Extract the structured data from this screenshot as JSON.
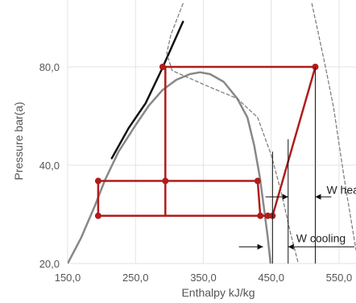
{
  "chart_data": {
    "type": "line",
    "title": "",
    "xlabel": "Enthalpy kJ/kg",
    "ylabel": "Pressure bar(a)",
    "x_scale": "linear",
    "y_scale": "log",
    "xlim": [
      150,
      575
    ],
    "ylim": [
      20,
      120
    ],
    "x_ticks": [
      150,
      250,
      350,
      450,
      550
    ],
    "x_tick_labels": [
      "150,0",
      "250,0",
      "350,0",
      "450,0",
      "550,0"
    ],
    "y_ticks": [
      20,
      40,
      80
    ],
    "y_tick_labels": [
      "20,0",
      "40,0",
      "80,0"
    ],
    "grid": {
      "x": true,
      "y": true
    },
    "legend": "none",
    "colors": {
      "cycle": "#b01c1c",
      "dome": "#888888",
      "isotherm_black": "#111111",
      "isentropic": "#777777",
      "grid": "#e3e3e3",
      "annotation": "#111111"
    },
    "series": [
      {
        "role": "saturation-dome",
        "points": [
          [
            150,
            20
          ],
          [
            170,
            24
          ],
          [
            190,
            30
          ],
          [
            205,
            36
          ],
          [
            225,
            44
          ],
          [
            250,
            53
          ],
          [
            270,
            61
          ],
          [
            290,
            68
          ],
          [
            310,
            73
          ],
          [
            330,
            76
          ],
          [
            345,
            77
          ],
          [
            360,
            76
          ],
          [
            380,
            72
          ],
          [
            400,
            64
          ],
          [
            415,
            56
          ],
          [
            425,
            46
          ],
          [
            433,
            37
          ],
          [
            439,
            30
          ],
          [
            445,
            24
          ],
          [
            449,
            20
          ]
        ]
      },
      {
        "role": "isotherm",
        "points": [
          [
            215,
            42
          ],
          [
            240,
            52
          ],
          [
            265,
            62
          ],
          [
            288,
            78
          ],
          [
            320,
            110
          ]
        ]
      },
      {
        "role": "isentropic-1",
        "points": [
          [
            320,
            125
          ],
          [
            302,
            100
          ],
          [
            296,
            88
          ],
          [
            304,
            78
          ],
          [
            355,
            70
          ],
          [
            400,
            64
          ],
          [
            430,
            56
          ],
          [
            450,
            43
          ],
          [
            465,
            33
          ],
          [
            478,
            25
          ],
          [
            490,
            20
          ]
        ]
      },
      {
        "role": "isentropic-2",
        "points": [
          [
            510,
            125
          ],
          [
            520,
            100
          ],
          [
            530,
            80
          ],
          [
            542,
            60
          ],
          [
            551,
            45
          ],
          [
            559,
            35
          ],
          [
            568,
            27
          ],
          [
            575,
            22
          ]
        ]
      },
      {
        "role": "heat-pump-cycle",
        "points": [
          [
            290,
            80
          ],
          [
            515,
            80
          ],
          [
            452,
            28
          ],
          [
            294,
            28
          ],
          [
            294,
            80
          ]
        ]
      },
      {
        "role": "refrigeration-cycle",
        "points": [
          [
            195,
            35.8
          ],
          [
            430,
            35.8
          ],
          [
            434,
            28
          ],
          [
            195,
            28
          ],
          [
            195,
            35.8
          ]
        ]
      }
    ],
    "markers": [
      [
        290,
        80
      ],
      [
        515,
        80
      ],
      [
        294,
        35.8
      ],
      [
        195,
        35.8
      ],
      [
        430,
        35.8
      ],
      [
        434,
        28
      ],
      [
        195,
        28
      ],
      [
        445,
        28
      ],
      [
        452,
        28
      ]
    ],
    "dimension_lines": [
      {
        "label": "W heating",
        "x_from": 475,
        "x_to": 515,
        "x_mid": 475,
        "y_ref": 32
      },
      {
        "label": "W cooling",
        "x_from": 438,
        "x_to": 475,
        "y_ref": 22.5
      }
    ],
    "vertical_guides": [
      [
        452,
        20,
        44
      ],
      [
        475,
        20,
        48
      ],
      [
        515,
        20,
        80
      ]
    ],
    "annotations": [
      "W heating",
      "W cooling"
    ]
  }
}
